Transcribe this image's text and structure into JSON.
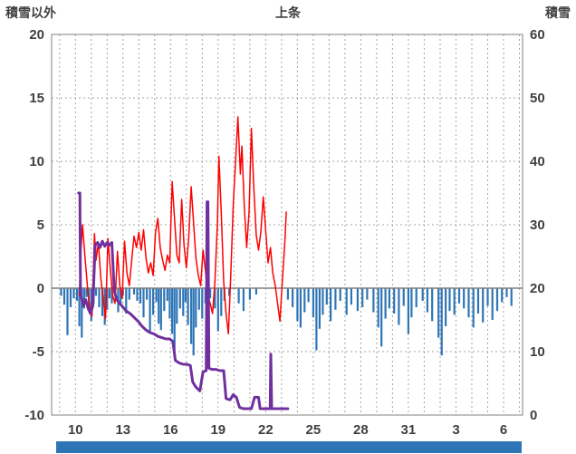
{
  "header": {
    "left_axis_title": "積雪以外",
    "title": "上条",
    "right_axis_title": "積雪"
  },
  "scrollbar": {
    "color": "#2E75B6"
  },
  "chart_data": {
    "type": "mixed",
    "title": "上条",
    "grid": true,
    "colors": {
      "grid": "#a6a6a6",
      "border": "#808080",
      "zero_line": "#7f7f7f",
      "tick_text": "#404040"
    },
    "left_axis": {
      "label": "積雪以外",
      "min": -10,
      "max": 20,
      "tick_step": 5
    },
    "right_axis": {
      "label": "積雪",
      "min": 0,
      "max": 60,
      "tick_step": 10
    },
    "x_axis": {
      "min": 8.5,
      "max": 38.2,
      "tick_days": [
        10,
        13,
        16,
        19,
        22,
        25,
        28,
        31,
        34,
        37
      ],
      "tick_labels": [
        "10",
        "13",
        "16",
        "19",
        "22",
        "25",
        "28",
        "31",
        "3",
        "6"
      ],
      "gridline_every_day": true
    },
    "series": [
      {
        "name": "precipitation-bars",
        "type": "bar",
        "axis": "left",
        "color": "#2E75B6",
        "bar_width": 2.2,
        "points": [
          [
            9.1,
            -0.6
          ],
          [
            9.3,
            -1.3
          ],
          [
            9.5,
            -3.7
          ],
          [
            9.7,
            -1.5
          ],
          [
            9.9,
            -0.8
          ],
          [
            10.1,
            -1.0
          ],
          [
            10.25,
            -3.0
          ],
          [
            10.4,
            -3.9
          ],
          [
            10.55,
            -1.6
          ],
          [
            10.7,
            -0.7
          ],
          [
            10.85,
            -1.8
          ],
          [
            11.0,
            -2.6
          ],
          [
            11.15,
            -1.2
          ],
          [
            11.3,
            -0.6
          ],
          [
            11.5,
            -1.5
          ],
          [
            11.7,
            -2.2
          ],
          [
            11.85,
            -2.9
          ],
          [
            12.0,
            -1.7
          ],
          [
            12.15,
            -0.8
          ],
          [
            12.3,
            -1.2
          ],
          [
            12.5,
            -0.5
          ],
          [
            12.7,
            -1.9
          ],
          [
            12.85,
            -1.2
          ],
          [
            13.0,
            -0.6
          ],
          [
            13.2,
            -2.0
          ],
          [
            13.4,
            -0.9
          ],
          [
            13.7,
            -0.5
          ],
          [
            13.9,
            -1.0
          ],
          [
            14.1,
            -1.2
          ],
          [
            14.3,
            -2.3
          ],
          [
            14.5,
            -0.9
          ],
          [
            14.7,
            -3.4
          ],
          [
            14.9,
            -2.1
          ],
          [
            15.1,
            -1.1
          ],
          [
            15.25,
            -2.8
          ],
          [
            15.4,
            -3.3
          ],
          [
            15.6,
            -1.8
          ],
          [
            15.8,
            -1.0
          ],
          [
            15.95,
            -2.4
          ],
          [
            16.1,
            -3.6
          ],
          [
            16.25,
            -4.9
          ],
          [
            16.4,
            -2.8
          ],
          [
            16.6,
            -1.6
          ],
          [
            16.8,
            -2.2
          ],
          [
            16.95,
            -1.1
          ],
          [
            17.1,
            -2.9
          ],
          [
            17.3,
            -4.4
          ],
          [
            17.45,
            -5.3
          ],
          [
            17.6,
            -3.1
          ],
          [
            17.8,
            -1.7
          ],
          [
            18.0,
            -2.4
          ],
          [
            18.2,
            -1.2
          ],
          [
            18.5,
            -0.8
          ],
          [
            18.8,
            -1.6
          ],
          [
            19.0,
            -3.4
          ],
          [
            19.2,
            -2.2
          ],
          [
            19.4,
            -1.0
          ],
          [
            19.7,
            -0.6
          ],
          [
            20.3,
            -1.2
          ],
          [
            20.6,
            -1.8
          ],
          [
            21.0,
            -0.9
          ],
          [
            21.4,
            -0.5
          ],
          [
            23.4,
            -0.9
          ],
          [
            23.7,
            -1.5
          ],
          [
            24.0,
            -2.6
          ],
          [
            24.2,
            -3.1
          ],
          [
            24.45,
            -1.9
          ],
          [
            24.7,
            -1.1
          ],
          [
            25.0,
            -2.3
          ],
          [
            25.2,
            -4.9
          ],
          [
            25.4,
            -3.2
          ],
          [
            25.6,
            -2.1
          ],
          [
            25.85,
            -1.3
          ],
          [
            26.1,
            -2.6
          ],
          [
            26.4,
            -1.7
          ],
          [
            26.7,
            -1.0
          ],
          [
            27.1,
            -2.1
          ],
          [
            27.4,
            -1.3
          ],
          [
            27.8,
            -1.8
          ],
          [
            28.1,
            -1.5
          ],
          [
            28.4,
            -0.9
          ],
          [
            28.8,
            -1.9
          ],
          [
            29.1,
            -3.1
          ],
          [
            29.3,
            -4.6
          ],
          [
            29.55,
            -2.4
          ],
          [
            29.8,
            -1.6
          ],
          [
            30.1,
            -2.0
          ],
          [
            30.4,
            -2.9
          ],
          [
            30.7,
            -1.4
          ],
          [
            31.0,
            -3.6
          ],
          [
            31.2,
            -2.3
          ],
          [
            31.5,
            -1.5
          ],
          [
            31.9,
            -1.0
          ],
          [
            32.2,
            -1.9
          ],
          [
            32.5,
            -2.6
          ],
          [
            32.9,
            -3.9
          ],
          [
            33.1,
            -5.3
          ],
          [
            33.35,
            -3.0
          ],
          [
            33.6,
            -1.8
          ],
          [
            33.9,
            -2.1
          ],
          [
            34.2,
            -1.2
          ],
          [
            34.5,
            -1.6
          ],
          [
            34.8,
            -2.3
          ],
          [
            35.1,
            -3.1
          ],
          [
            35.4,
            -2.0
          ],
          [
            35.7,
            -2.7
          ],
          [
            36.0,
            -1.4
          ],
          [
            36.3,
            -2.5
          ],
          [
            36.6,
            -1.8
          ],
          [
            36.9,
            -1.1
          ],
          [
            37.2,
            -0.7
          ],
          [
            37.5,
            -1.4
          ]
        ]
      },
      {
        "name": "temperature-line",
        "type": "line",
        "axis": "left",
        "color": "#FF0000",
        "stroke_width": 1.5,
        "points": [
          [
            10.25,
            -0.6
          ],
          [
            10.35,
            3.0
          ],
          [
            10.45,
            5.0
          ],
          [
            10.6,
            2.5
          ],
          [
            10.8,
            -0.5
          ],
          [
            10.95,
            -1.8
          ],
          [
            11.05,
            -2.2
          ],
          [
            11.2,
            4.3
          ],
          [
            11.3,
            2.2
          ],
          [
            11.45,
            3.6
          ],
          [
            11.6,
            0.8
          ],
          [
            11.75,
            -0.8
          ],
          [
            11.9,
            -2.4
          ],
          [
            12.05,
            3.9
          ],
          [
            12.2,
            1.5
          ],
          [
            12.35,
            -0.6
          ],
          [
            12.5,
            -1.2
          ],
          [
            12.65,
            2.9
          ],
          [
            12.8,
            0.2
          ],
          [
            12.95,
            -0.8
          ],
          [
            13.1,
            3.7
          ],
          [
            13.25,
            1.2
          ],
          [
            13.4,
            0.2
          ],
          [
            13.55,
            2.2
          ],
          [
            13.7,
            4.1
          ],
          [
            13.85,
            3.2
          ],
          [
            14.0,
            4.4
          ],
          [
            14.15,
            3.0
          ],
          [
            14.3,
            4.6
          ],
          [
            14.45,
            2.4
          ],
          [
            14.6,
            1.2
          ],
          [
            14.75,
            2.0
          ],
          [
            14.9,
            1.0
          ],
          [
            15.05,
            4.4
          ],
          [
            15.2,
            5.5
          ],
          [
            15.35,
            3.2
          ],
          [
            15.5,
            2.2
          ],
          [
            15.65,
            1.4
          ],
          [
            15.8,
            2.6
          ],
          [
            15.95,
            2.0
          ],
          [
            16.1,
            8.4
          ],
          [
            16.25,
            5.5
          ],
          [
            16.4,
            2.6
          ],
          [
            16.55,
            2.0
          ],
          [
            16.7,
            7.0
          ],
          [
            16.85,
            3.4
          ],
          [
            17.0,
            1.6
          ],
          [
            17.15,
            4.0
          ],
          [
            17.3,
            8.0
          ],
          [
            17.45,
            5.2
          ],
          [
            17.6,
            2.4
          ],
          [
            17.75,
            1.0
          ],
          [
            17.9,
            0.2
          ],
          [
            18.05,
            3.0
          ],
          [
            18.2,
            1.4
          ],
          [
            18.35,
            -0.6
          ],
          [
            18.5,
            -1.2
          ],
          [
            18.65,
            -2.0
          ],
          [
            18.8,
            0.5
          ],
          [
            18.95,
            5.0
          ],
          [
            19.05,
            10.4
          ],
          [
            19.2,
            6.0
          ],
          [
            19.35,
            0.5
          ],
          [
            19.5,
            -2.0
          ],
          [
            19.65,
            -3.6
          ],
          [
            19.8,
            1.0
          ],
          [
            19.95,
            6.5
          ],
          [
            20.1,
            10.0
          ],
          [
            20.25,
            13.5
          ],
          [
            20.4,
            9.0
          ],
          [
            20.5,
            11.2
          ],
          [
            20.65,
            6.5
          ],
          [
            20.8,
            3.2
          ],
          [
            20.95,
            6.0
          ],
          [
            21.1,
            12.6
          ],
          [
            21.25,
            8.0
          ],
          [
            21.4,
            4.2
          ],
          [
            21.55,
            3.0
          ],
          [
            21.7,
            4.5
          ],
          [
            21.85,
            7.2
          ],
          [
            22.0,
            4.5
          ],
          [
            22.15,
            2.0
          ],
          [
            22.3,
            3.2
          ],
          [
            22.45,
            1.2
          ],
          [
            22.6,
            0.2
          ],
          [
            22.75,
            -1.2
          ],
          [
            22.9,
            -2.6
          ],
          [
            23.05,
            0.5
          ],
          [
            23.2,
            3.5
          ],
          [
            23.3,
            6.0
          ]
        ]
      },
      {
        "name": "snow-depth-line",
        "type": "line",
        "axis": "left",
        "color": "#7030A0",
        "stroke_width": 3,
        "points": [
          [
            10.2,
            7.5
          ],
          [
            10.28,
            7.5
          ],
          [
            10.32,
            -0.4
          ],
          [
            10.5,
            -1.4
          ],
          [
            10.65,
            -0.9
          ],
          [
            10.8,
            -1.6
          ],
          [
            10.95,
            -2.0
          ],
          [
            11.1,
            -1.4
          ],
          [
            11.25,
            3.4
          ],
          [
            11.4,
            3.6
          ],
          [
            11.55,
            3.2
          ],
          [
            11.7,
            3.7
          ],
          [
            11.85,
            3.3
          ],
          [
            12.0,
            3.6
          ],
          [
            12.15,
            3.4
          ],
          [
            12.3,
            3.6
          ],
          [
            12.45,
            -0.2
          ],
          [
            12.6,
            -0.9
          ],
          [
            12.8,
            -1.2
          ],
          [
            13.0,
            -1.5
          ],
          [
            13.2,
            -1.8
          ],
          [
            13.45,
            -2.0
          ],
          [
            13.7,
            -2.3
          ],
          [
            13.95,
            -2.6
          ],
          [
            14.2,
            -3.0
          ],
          [
            14.45,
            -3.3
          ],
          [
            14.7,
            -3.5
          ],
          [
            14.95,
            -3.6
          ],
          [
            15.2,
            -3.8
          ],
          [
            15.45,
            -3.9
          ],
          [
            15.7,
            -4.0
          ],
          [
            15.95,
            -4.0
          ],
          [
            16.15,
            -4.2
          ],
          [
            16.3,
            -5.7
          ],
          [
            16.55,
            -5.9
          ],
          [
            16.8,
            -6.0
          ],
          [
            17.05,
            -6.0
          ],
          [
            17.25,
            -6.1
          ],
          [
            17.4,
            -7.4
          ],
          [
            17.6,
            -7.8
          ],
          [
            17.85,
            -8.1
          ],
          [
            18.05,
            -6.6
          ],
          [
            18.25,
            -6.5
          ],
          [
            18.3,
            6.8
          ],
          [
            18.36,
            6.8
          ],
          [
            18.42,
            -6.3
          ],
          [
            18.6,
            -6.4
          ],
          [
            18.85,
            -6.4
          ],
          [
            19.1,
            -6.5
          ],
          [
            19.35,
            -6.5
          ],
          [
            19.5,
            -8.7
          ],
          [
            19.75,
            -8.8
          ],
          [
            19.95,
            -8.4
          ],
          [
            20.15,
            -8.6
          ],
          [
            20.35,
            -9.4
          ],
          [
            20.6,
            -9.5
          ],
          [
            20.85,
            -9.5
          ],
          [
            21.1,
            -9.5
          ],
          [
            21.3,
            -8.6
          ],
          [
            21.55,
            -8.6
          ],
          [
            21.65,
            -9.5
          ],
          [
            21.9,
            -9.5
          ],
          [
            22.15,
            -9.5
          ],
          [
            22.28,
            -9.5
          ],
          [
            22.32,
            -5.2
          ],
          [
            22.38,
            -9.5
          ],
          [
            22.6,
            -9.5
          ],
          [
            22.85,
            -9.5
          ],
          [
            23.1,
            -9.5
          ],
          [
            23.4,
            -9.5
          ]
        ]
      }
    ]
  }
}
